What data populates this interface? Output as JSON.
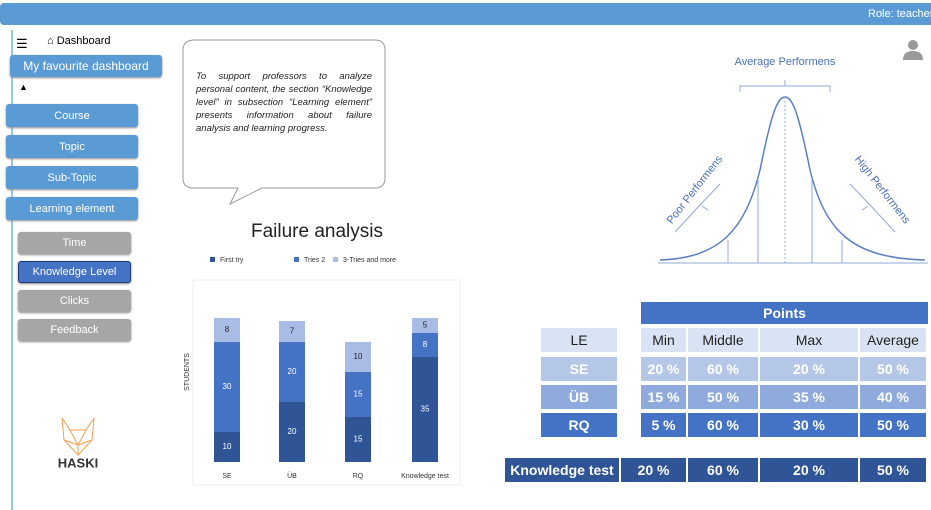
{
  "header": {
    "role": "Role: teacher"
  },
  "sidebar": {
    "dashboard": "Dashboard",
    "favourite": "My favourite dashboard",
    "menu": [
      "Course",
      "Topic",
      "Sub-Topic",
      "Learning element"
    ],
    "submenu": [
      "Time",
      "Knowledge Level",
      "Clicks",
      "Feedback"
    ],
    "logo": "HASKI"
  },
  "callout": "To support professors to analyze personal content, the section “Knowledge level” in subsection “Learning element” presents information about failure analysis and learning progress.",
  "chart_data": {
    "type": "stacked-bar",
    "title": "Failure analysis",
    "y_label": "STUDENTS",
    "categories": [
      "SE",
      "ÜB",
      "RQ",
      "Knowledge test"
    ],
    "series": [
      {
        "name": "First try",
        "color": "#2f5597",
        "values": [
          10,
          20,
          15,
          35
        ]
      },
      {
        "name": "Tries 2",
        "color": "#4472c4",
        "values": [
          30,
          20,
          15,
          8
        ]
      },
      {
        "name": "3-Tries and more",
        "color": "#a9bce6",
        "values": [
          8,
          7,
          10,
          5
        ]
      }
    ],
    "ylim": [
      0,
      60
    ]
  },
  "curve": {
    "average": "Average Performens",
    "poor": "Poor Performens",
    "high": "High Performens"
  },
  "table": {
    "group": "Points",
    "columns": [
      "LE",
      "Min",
      "Middle",
      "Max",
      "Average"
    ],
    "rows": [
      [
        "SE",
        "20 %",
        "60 %",
        "20 %",
        "50 %"
      ],
      [
        "ÜB",
        "15 %",
        "50 %",
        "35 %",
        "40 %"
      ],
      [
        "RQ",
        "5 %",
        "60 %",
        "30 %",
        "50 %"
      ]
    ],
    "total": [
      "Knowledge test",
      "20 %",
      "60 %",
      "20 %",
      "50 %"
    ]
  }
}
